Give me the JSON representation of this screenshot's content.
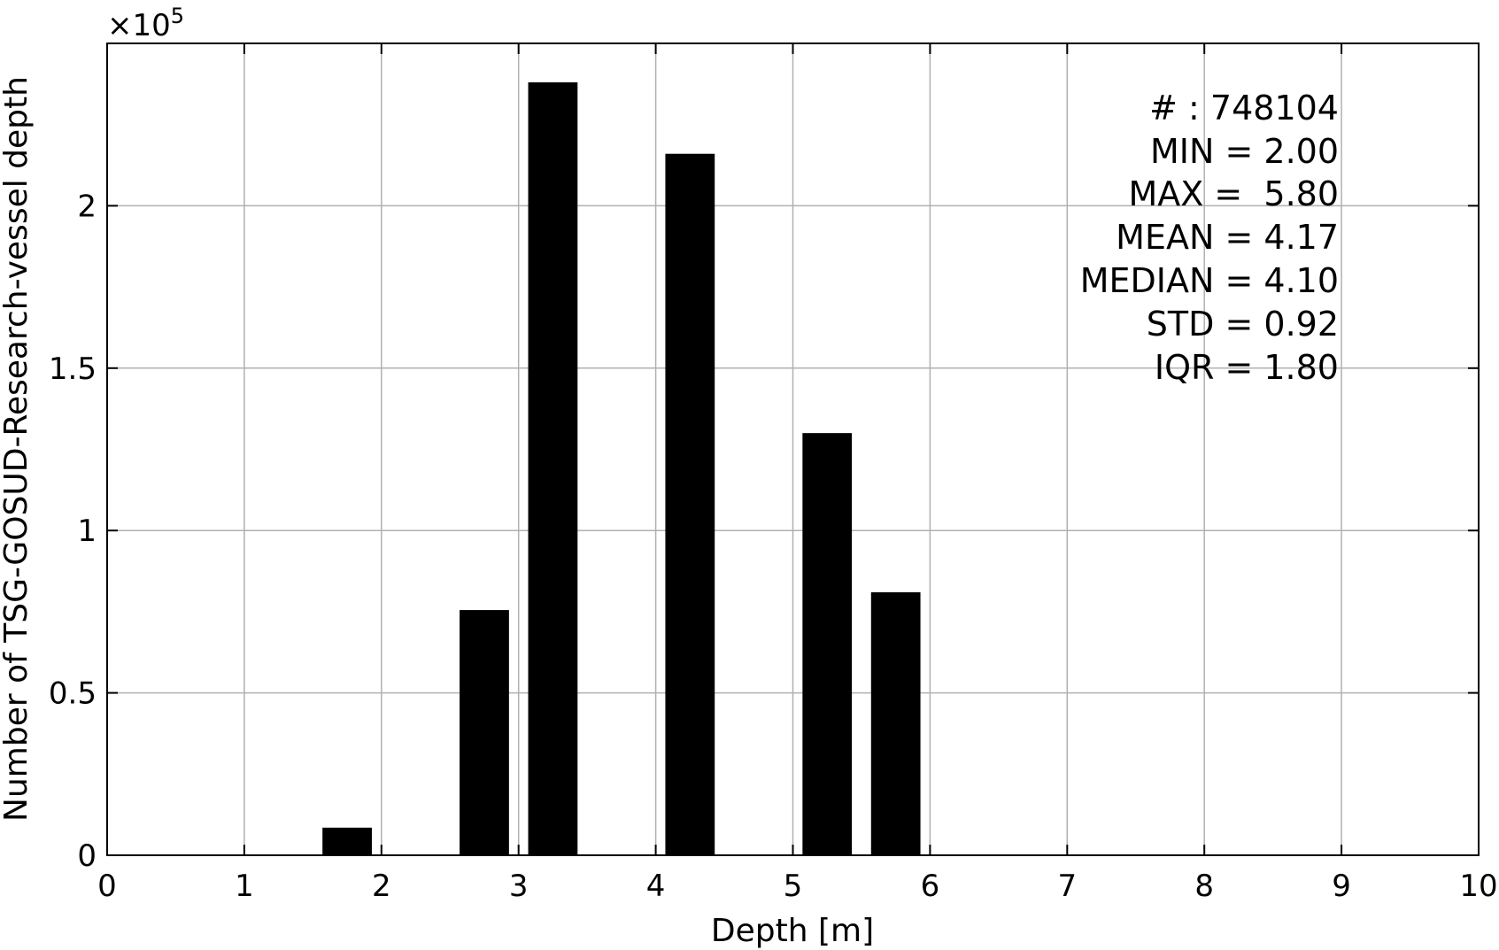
{
  "chart_data": {
    "type": "bar",
    "xlabel": "Depth [m]",
    "ylabel": "Number of TSG-GOSUD-Research-vessel depth",
    "y_exponent_label": "×10",
    "y_exponent_power": "5",
    "xlim": [
      0,
      10
    ],
    "ylim": [
      0,
      250000
    ],
    "x_ticks": [
      "0",
      "1",
      "2",
      "3",
      "4",
      "5",
      "6",
      "7",
      "8",
      "9",
      "10"
    ],
    "y_ticks": [
      {
        "value": 0,
        "label": "0"
      },
      {
        "value": 50000,
        "label": "0.5"
      },
      {
        "value": 100000,
        "label": "1"
      },
      {
        "value": 150000,
        "label": "1.5"
      },
      {
        "value": 200000,
        "label": "2"
      }
    ],
    "grid": true,
    "bar_width": 0.36,
    "bars": [
      {
        "x": 1.75,
        "value": 8500
      },
      {
        "x": 2.75,
        "value": 75500
      },
      {
        "x": 3.25,
        "value": 238000
      },
      {
        "x": 4.25,
        "value": 216000
      },
      {
        "x": 5.25,
        "value": 130000
      },
      {
        "x": 5.75,
        "value": 81000
      }
    ],
    "annotation_position": "top-right",
    "annotations": [
      "# : 748104",
      "MIN = 2.00",
      "MAX =  5.80",
      "MEAN = 4.17",
      "MEDIAN = 4.10",
      "STD = 0.92",
      "IQR = 1.80"
    ]
  }
}
